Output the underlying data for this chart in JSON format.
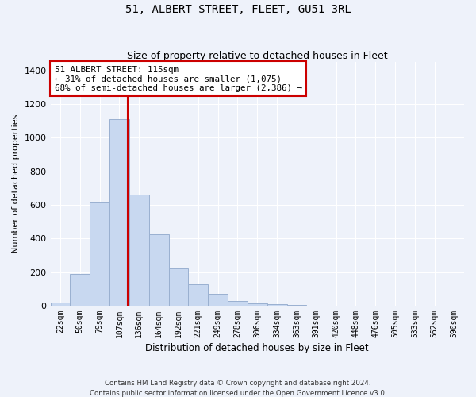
{
  "title": "51, ALBERT STREET, FLEET, GU51 3RL",
  "subtitle": "Size of property relative to detached houses in Fleet",
  "xlabel": "Distribution of detached houses by size in Fleet",
  "ylabel": "Number of detached properties",
  "footer_line1": "Contains HM Land Registry data © Crown copyright and database right 2024.",
  "footer_line2": "Contains public sector information licensed under the Open Government Licence v3.0.",
  "annotation_line1": "51 ALBERT STREET: 115sqm",
  "annotation_line2": "← 31% of detached houses are smaller (1,075)",
  "annotation_line3": "68% of semi-detached houses are larger (2,386) →",
  "categories": [
    "22sqm",
    "50sqm",
    "79sqm",
    "107sqm",
    "136sqm",
    "164sqm",
    "192sqm",
    "221sqm",
    "249sqm",
    "278sqm",
    "306sqm",
    "334sqm",
    "363sqm",
    "391sqm",
    "420sqm",
    "448sqm",
    "476sqm",
    "505sqm",
    "533sqm",
    "562sqm",
    "590sqm"
  ],
  "values": [
    20,
    190,
    615,
    1110,
    660,
    425,
    220,
    125,
    70,
    30,
    15,
    10,
    5,
    2,
    1,
    0,
    0,
    0,
    0,
    0,
    0
  ],
  "bar_color": "#c8d8f0",
  "bar_edge_color": "#9ab0d0",
  "vline_color": "#cc0000",
  "annotation_box_color": "#cc0000",
  "background_color": "#eef2fa",
  "grid_color": "#ffffff",
  "ylim": [
    0,
    1450
  ],
  "yticks": [
    0,
    200,
    400,
    600,
    800,
    1000,
    1200,
    1400
  ],
  "vline_pos": 3.42,
  "title_fontsize": 10,
  "subtitle_fontsize": 9
}
